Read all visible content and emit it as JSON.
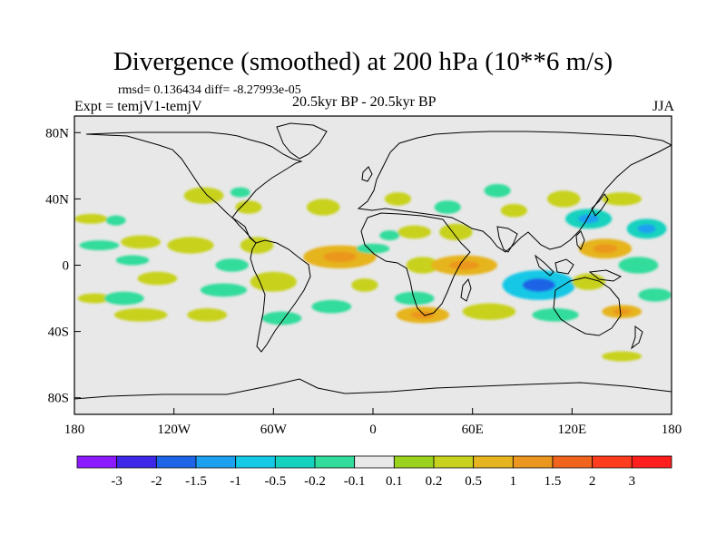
{
  "header": {
    "title": "Divergence (smoothed) at 200 hPa (10**6 m/s)",
    "stats": "rmsd= 0.136434 diff= -8.27993e-05",
    "expt": "Expt = temjV1-temjV",
    "period": "20.5kyr BP - 20.5kyr BP",
    "season": "JJA"
  },
  "map": {
    "projection": "cylindrical equidistant",
    "lon_range": [
      -180,
      180
    ],
    "lat_range": [
      -90,
      90
    ],
    "background_color": "#e8e8e8",
    "x_ticks": [
      {
        "lon": -180,
        "label": "180"
      },
      {
        "lon": -120,
        "label": "120W"
      },
      {
        "lon": -60,
        "label": "60W"
      },
      {
        "lon": 0,
        "label": "0"
      },
      {
        "lon": 60,
        "label": "60E"
      },
      {
        "lon": 120,
        "label": "120E"
      },
      {
        "lon": 180,
        "label": "180"
      }
    ],
    "y_ticks": [
      {
        "lat": 80,
        "label": "80N"
      },
      {
        "lat": 40,
        "label": "40N"
      },
      {
        "lat": 0,
        "label": "0"
      },
      {
        "lat": -40,
        "label": "40S"
      },
      {
        "lat": -80,
        "label": "80S"
      }
    ]
  },
  "chart_data": {
    "type": "heatmap",
    "title": "Divergence (smoothed) at 200 hPa (10**6 m/s)",
    "variable": "divergence difference",
    "units": "10**6 m/s",
    "x_range": [
      -180,
      180
    ],
    "y_range": [
      -90,
      90
    ],
    "levels": [
      -3,
      -2,
      -1.5,
      -1,
      -0.5,
      -0.2,
      -0.1,
      0.1,
      0.2,
      0.5,
      1,
      1.5,
      2,
      3
    ],
    "colors": [
      "#8c1aff",
      "#3c28e6",
      "#1e64e6",
      "#1ea0f0",
      "#14c8e6",
      "#14d2be",
      "#32dc9b",
      "#e8e8e8",
      "#9bd21e",
      "#c8d21e",
      "#e6b41e",
      "#eb961e",
      "#f0641e",
      "#ff3c1e",
      "#ff1e1e"
    ],
    "colorbar_labels": [
      "-3",
      "-2",
      "-1.5",
      "-1",
      "-0.5",
      "-0.2",
      "-0.1",
      "0.1",
      "0.2",
      "0.5",
      "1",
      "1.5",
      "2",
      "3"
    ],
    "features": [
      {
        "lon": -170,
        "lat": 28,
        "rx": 10,
        "ry": 3,
        "value": 0.2
      },
      {
        "lon": -165,
        "lat": 12,
        "rx": 12,
        "ry": 3,
        "value": -0.2
      },
      {
        "lon": -168,
        "lat": -20,
        "rx": 10,
        "ry": 3,
        "value": 0.2
      },
      {
        "lon": -155,
        "lat": 27,
        "rx": 6,
        "ry": 3,
        "value": -0.2
      },
      {
        "lon": -140,
        "lat": 14,
        "rx": 12,
        "ry": 4,
        "value": 0.2
      },
      {
        "lon": -145,
        "lat": 3,
        "rx": 10,
        "ry": 3,
        "value": -0.2
      },
      {
        "lon": -150,
        "lat": -20,
        "rx": 12,
        "ry": 4,
        "value": -0.2
      },
      {
        "lon": -140,
        "lat": -30,
        "rx": 16,
        "ry": 4,
        "value": 0.2
      },
      {
        "lon": -130,
        "lat": -8,
        "rx": 12,
        "ry": 4,
        "value": 0.2
      },
      {
        "lon": -110,
        "lat": 12,
        "rx": 14,
        "ry": 5,
        "value": 0.2
      },
      {
        "lon": -100,
        "lat": -30,
        "rx": 12,
        "ry": 4,
        "value": 0.2
      },
      {
        "lon": -85,
        "lat": 0,
        "rx": 10,
        "ry": 4,
        "value": -0.2
      },
      {
        "lon": -90,
        "lat": -15,
        "rx": 14,
        "ry": 4,
        "value": -0.2
      },
      {
        "lon": -102,
        "lat": 42,
        "rx": 12,
        "ry": 5,
        "value": 0.2
      },
      {
        "lon": -75,
        "lat": 35,
        "rx": 8,
        "ry": 4,
        "value": 0.2
      },
      {
        "lon": -80,
        "lat": 44,
        "rx": 6,
        "ry": 3,
        "value": -0.2
      },
      {
        "lon": -70,
        "lat": 12,
        "rx": 10,
        "ry": 5,
        "value": 0.2
      },
      {
        "lon": -60,
        "lat": -10,
        "rx": 14,
        "ry": 6,
        "value": 0.2
      },
      {
        "lon": -55,
        "lat": -32,
        "rx": 12,
        "ry": 4,
        "value": -0.2
      },
      {
        "lon": -30,
        "lat": 35,
        "rx": 10,
        "ry": 5,
        "value": 0.2
      },
      {
        "lon": -20,
        "lat": 5,
        "rx": 22,
        "ry": 7,
        "value": 0.5
      },
      {
        "lon": -25,
        "lat": -25,
        "rx": 12,
        "ry": 4,
        "value": -0.2
      },
      {
        "lon": -5,
        "lat": -12,
        "rx": 8,
        "ry": 4,
        "value": 0.2
      },
      {
        "lon": 0,
        "lat": 10,
        "rx": 10,
        "ry": 3,
        "value": -0.2
      },
      {
        "lon": 15,
        "lat": 40,
        "rx": 8,
        "ry": 4,
        "value": 0.2
      },
      {
        "lon": 25,
        "lat": 20,
        "rx": 10,
        "ry": 4,
        "value": 0.2
      },
      {
        "lon": 10,
        "lat": 18,
        "rx": 6,
        "ry": 3,
        "value": -0.2
      },
      {
        "lon": 30,
        "lat": 0,
        "rx": 10,
        "ry": 5,
        "value": 0.2
      },
      {
        "lon": 25,
        "lat": -20,
        "rx": 12,
        "ry": 4,
        "value": -0.2
      },
      {
        "lon": 30,
        "lat": -30,
        "rx": 16,
        "ry": 5,
        "value": 0.5
      },
      {
        "lon": 55,
        "lat": 0,
        "rx": 20,
        "ry": 6,
        "value": 0.5
      },
      {
        "lon": 50,
        "lat": 20,
        "rx": 10,
        "ry": 5,
        "value": 0.2
      },
      {
        "lon": 45,
        "lat": 35,
        "rx": 8,
        "ry": 4,
        "value": -0.2
      },
      {
        "lon": 75,
        "lat": 45,
        "rx": 8,
        "ry": 4,
        "value": -0.2
      },
      {
        "lon": 85,
        "lat": 33,
        "rx": 8,
        "ry": 4,
        "value": 0.2
      },
      {
        "lon": 70,
        "lat": -28,
        "rx": 16,
        "ry": 5,
        "value": 0.2
      },
      {
        "lon": 100,
        "lat": -12,
        "rx": 22,
        "ry": 9,
        "value": -1
      },
      {
        "lon": 115,
        "lat": 40,
        "rx": 10,
        "ry": 5,
        "value": 0.2
      },
      {
        "lon": 130,
        "lat": 28,
        "rx": 14,
        "ry": 6,
        "value": -0.5
      },
      {
        "lon": 140,
        "lat": 10,
        "rx": 16,
        "ry": 6,
        "value": 0.5
      },
      {
        "lon": 130,
        "lat": -10,
        "rx": 10,
        "ry": 5,
        "value": 0.2
      },
      {
        "lon": 110,
        "lat": -30,
        "rx": 14,
        "ry": 4,
        "value": -0.2
      },
      {
        "lon": 150,
        "lat": 40,
        "rx": 12,
        "ry": 4,
        "value": 0.2
      },
      {
        "lon": 165,
        "lat": 22,
        "rx": 12,
        "ry": 6,
        "value": -0.5
      },
      {
        "lon": 160,
        "lat": 0,
        "rx": 12,
        "ry": 5,
        "value": -0.2
      },
      {
        "lon": 170,
        "lat": -18,
        "rx": 10,
        "ry": 4,
        "value": -0.2
      },
      {
        "lon": 150,
        "lat": -28,
        "rx": 12,
        "ry": 4,
        "value": 0.5
      },
      {
        "lon": 150,
        "lat": -55,
        "rx": 12,
        "ry": 3,
        "value": 0.2
      }
    ]
  }
}
